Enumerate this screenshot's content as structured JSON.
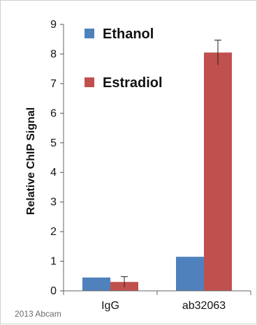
{
  "watermark": "2013 Abcam",
  "chart_data": {
    "type": "bar",
    "categories": [
      "IgG",
      "ab32063"
    ],
    "series": [
      {
        "name": "Ethanol",
        "values": [
          0.45,
          1.15
        ],
        "errors": [
          0.0,
          0.0
        ],
        "color": "#4f81bd"
      },
      {
        "name": "Estradiol",
        "values": [
          0.3,
          8.05
        ],
        "errors": [
          0.18,
          0.42
        ],
        "color": "#c0504d"
      }
    ],
    "title": "",
    "xlabel": "",
    "ylabel": "Relative ChIP Signal",
    "ylim": [
      0,
      9
    ],
    "yticks": [
      "0",
      "1",
      "2",
      "3",
      "4",
      "5",
      "6",
      "7",
      "8",
      "9"
    ],
    "grid": false,
    "legend_position": "top-left"
  }
}
